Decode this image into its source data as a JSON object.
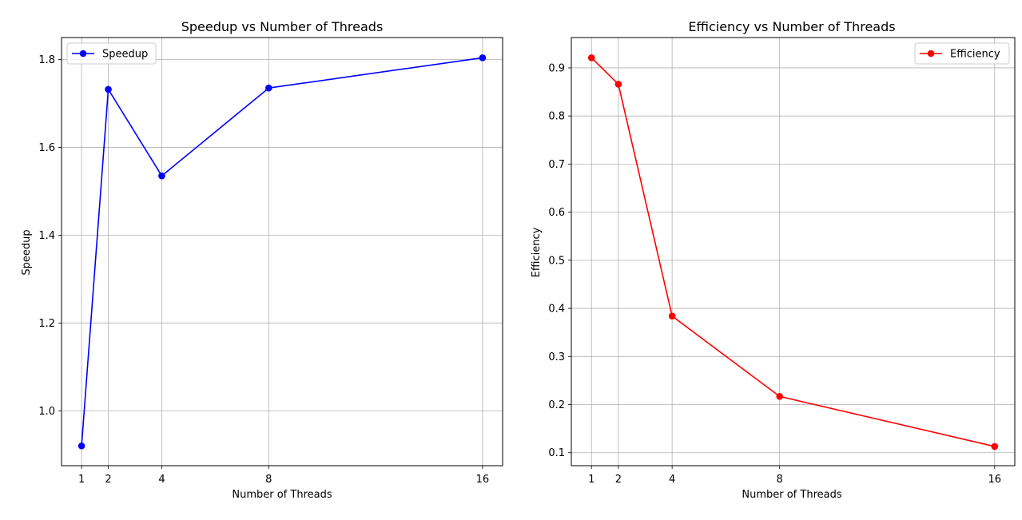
{
  "chart_data": [
    {
      "type": "line",
      "title": "Speedup vs Number of Threads",
      "xlabel": "Number of Threads",
      "ylabel": "Speedup",
      "x": [
        1,
        2,
        4,
        8,
        16
      ],
      "xticks": [
        "1",
        "2",
        "4",
        "8",
        "16"
      ],
      "yticks": [
        "1.0",
        "1.2",
        "1.4",
        "1.6",
        "1.8"
      ],
      "ylim": [
        0.875,
        1.85
      ],
      "xlim": [
        0.25,
        16.75
      ],
      "grid": true,
      "legend_position": "upper-left",
      "series": [
        {
          "name": "Speedup",
          "color": "#0000ff",
          "marker": "circle",
          "values": [
            0.92,
            1.732,
            1.535,
            1.735,
            1.804
          ]
        }
      ]
    },
    {
      "type": "line",
      "title": "Efficiency vs Number of Threads",
      "xlabel": "Number of Threads",
      "ylabel": "Efficiency",
      "x": [
        1,
        2,
        4,
        8,
        16
      ],
      "xticks": [
        "1",
        "2",
        "4",
        "8",
        "16"
      ],
      "yticks": [
        "0.1",
        "0.2",
        "0.3",
        "0.4",
        "0.5",
        "0.6",
        "0.7",
        "0.8",
        "0.9"
      ],
      "ylim": [
        0.073,
        0.963
      ],
      "xlim": [
        0.25,
        16.75
      ],
      "grid": true,
      "legend_position": "upper-right",
      "series": [
        {
          "name": "Efficiency",
          "color": "#ff0000",
          "marker": "circle",
          "values": [
            0.921,
            0.866,
            0.384,
            0.217,
            0.113
          ]
        }
      ]
    }
  ]
}
